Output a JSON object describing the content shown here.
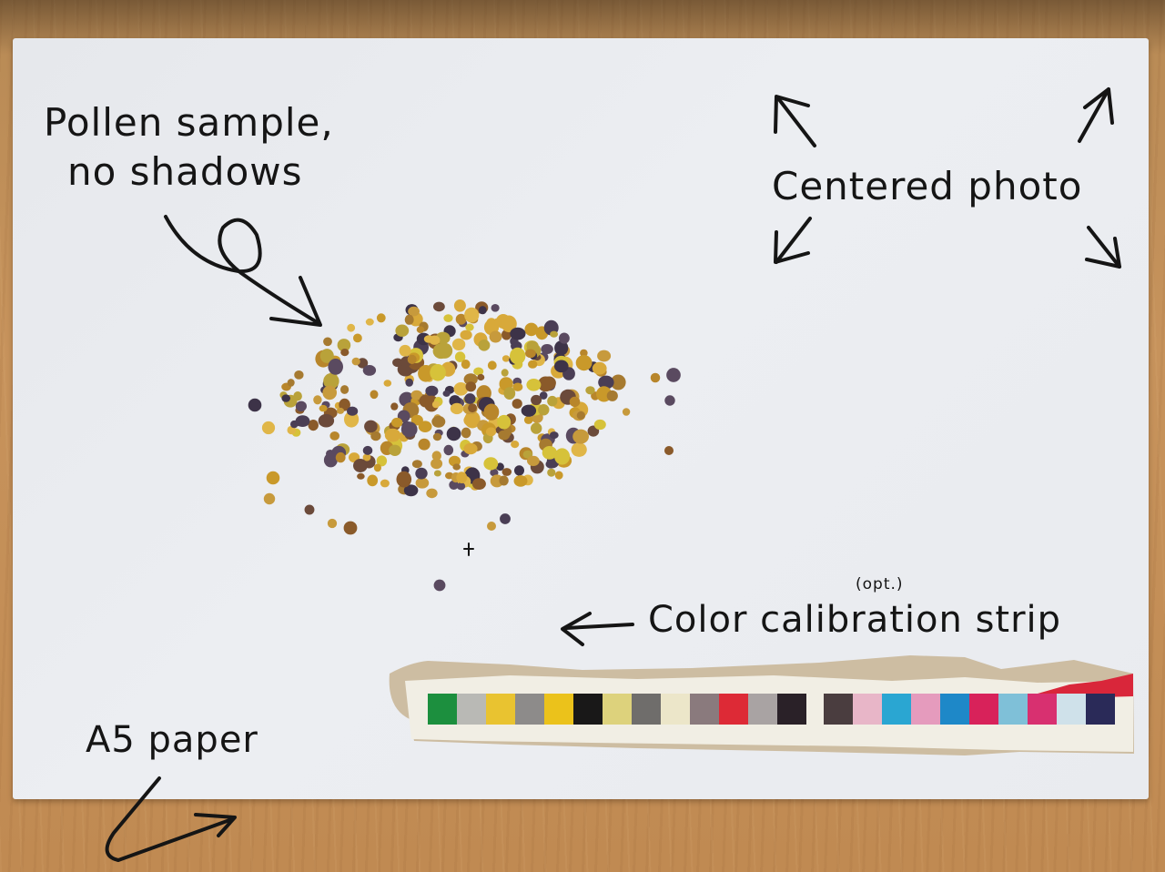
{
  "labels": {
    "pollen_line1": "Pollen sample,",
    "pollen_line2": "no shadows",
    "centered": "Centered photo",
    "opt": "(opt.)",
    "strip": "Color calibration strip",
    "a5": "A5 paper"
  },
  "icons": {
    "arrows": [
      "arrow-up-left-icon",
      "arrow-up-right-icon",
      "arrow-down-left-icon",
      "arrow-down-right-icon",
      "arrow-left-icon",
      "curly-arrow-icon",
      "arrow-right-icon"
    ]
  },
  "colors": {
    "paper": "#eceef2",
    "ink": "#151515",
    "wood": "#c7935c"
  },
  "calibration": {
    "swatches_left": [
      "#1c8f3e",
      "#b9b9b5",
      "#e9c330",
      "#8d8b8a",
      "#ebc21b",
      "#191818",
      "#ddd27c",
      "#6f6d6b",
      "#ece6c9",
      "#8a7a7d",
      "#dd2a36",
      "#a9a3a3",
      "#2a2128"
    ],
    "swatches_right": [
      "#4a3d3f",
      "#e8b6c8",
      "#2aa6d2",
      "#e59bbd",
      "#1e88c8",
      "#d8225a",
      "#7fc0d8",
      "#d83070",
      "#cfe1ea",
      "#2a2a58"
    ]
  }
}
